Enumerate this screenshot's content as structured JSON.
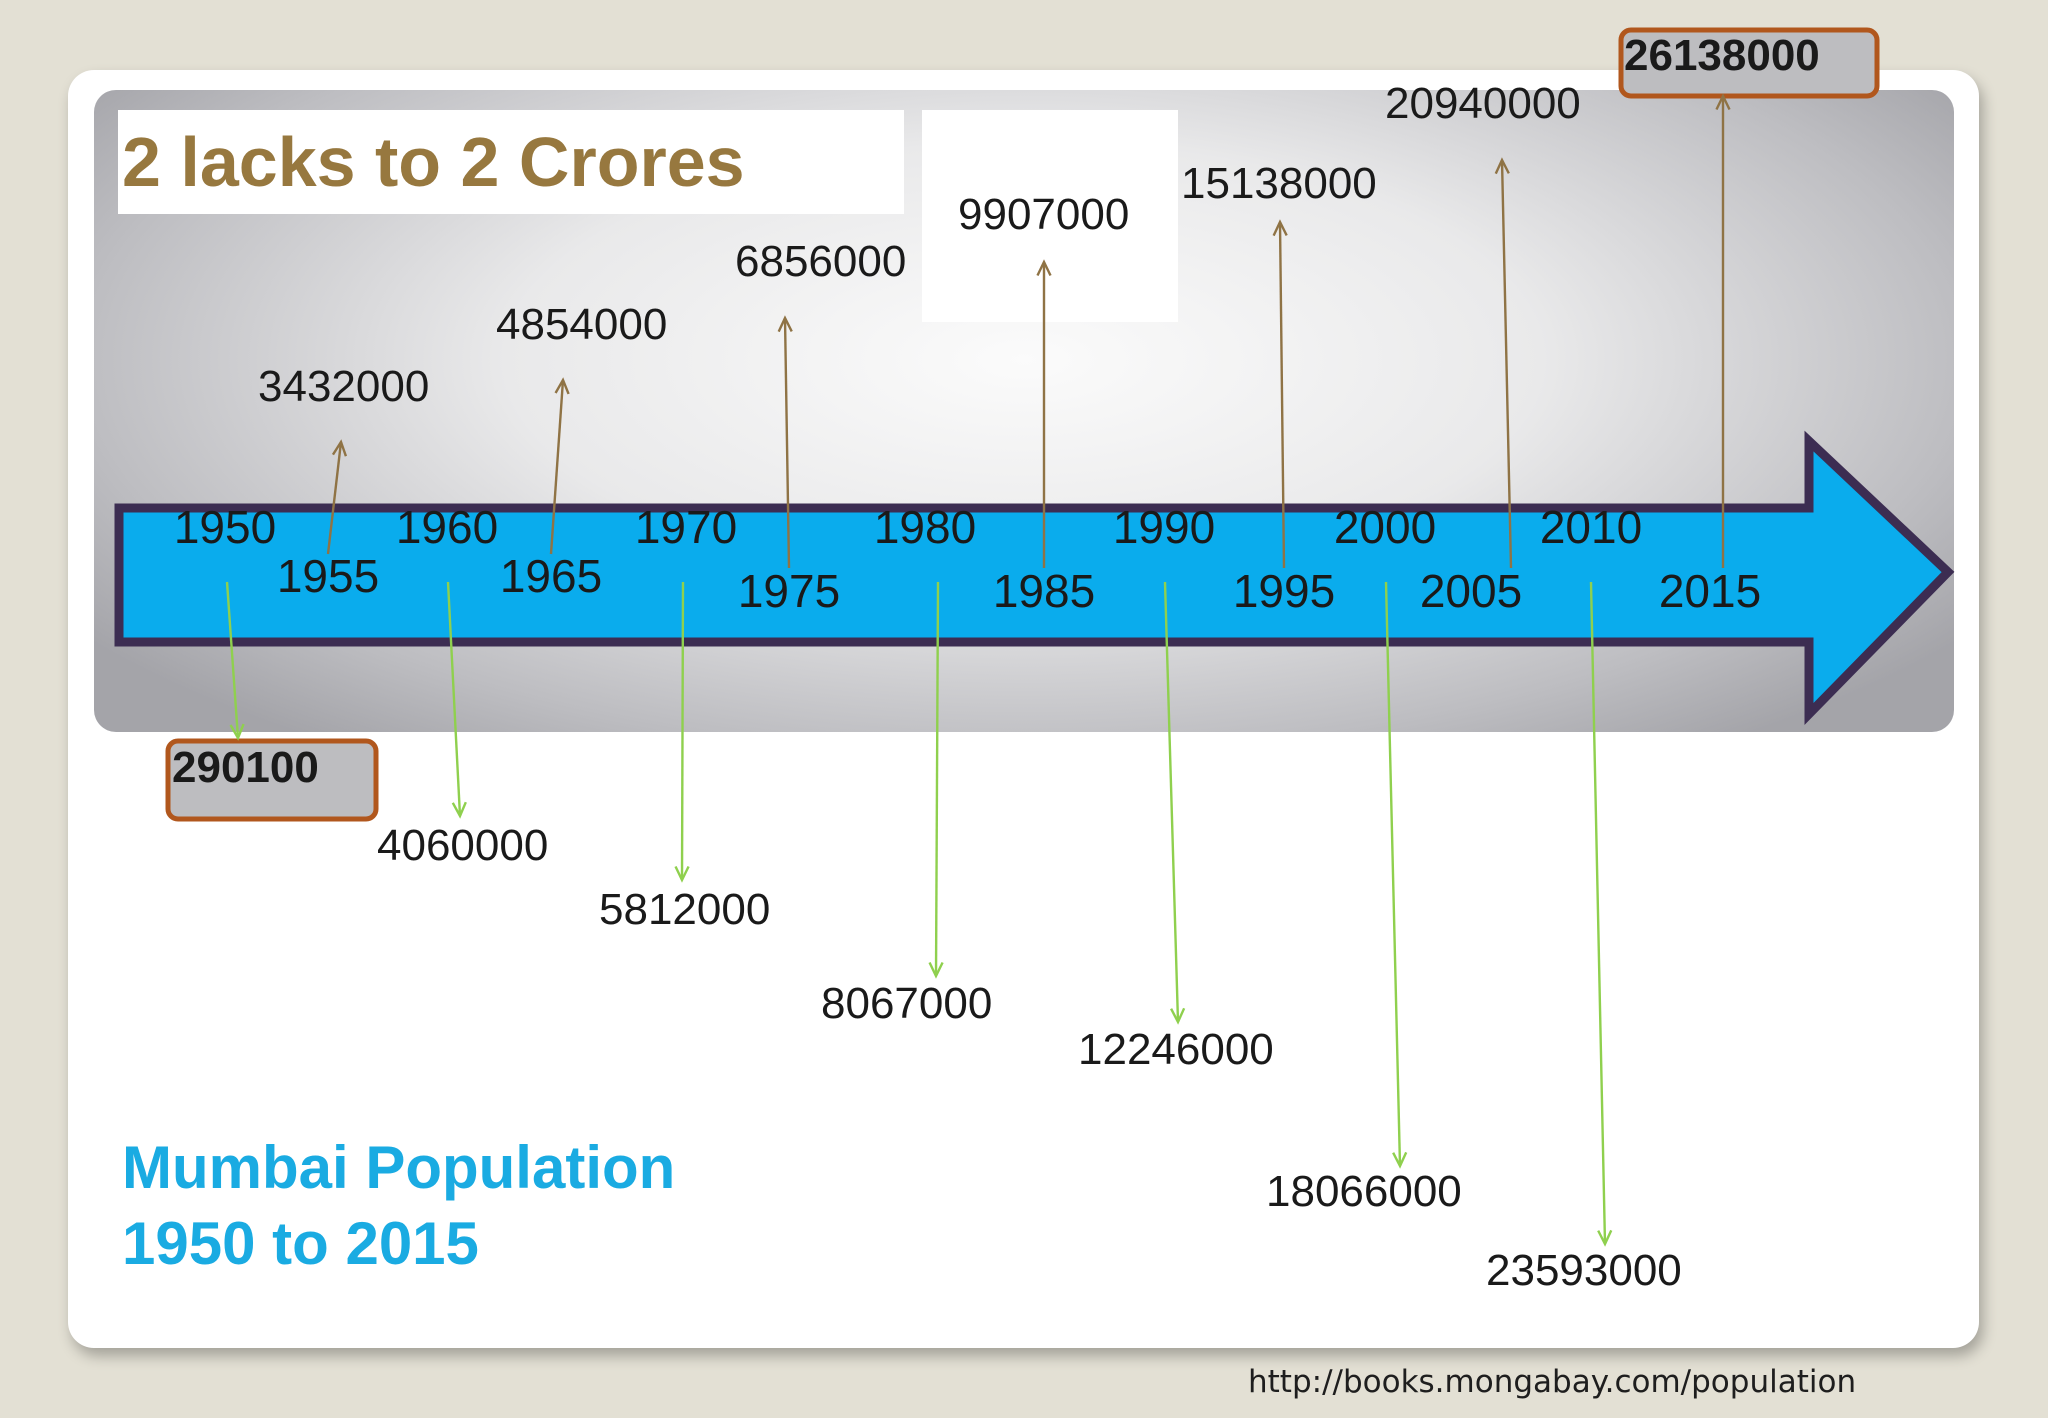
{
  "title": "2 lacks to 2 Crores",
  "subtitle_line1": "Mumbai Population",
  "subtitle_line2": "1950 to 2015",
  "source": "http://books.mongabay.com/population",
  "emoji_icon": "shocked-emoji-icon",
  "colors": {
    "arrow_fill": "#0aaced",
    "arrow_outline": "#3c2d52",
    "up_arrow": "#8f7345",
    "down_arrow": "#8fd04e",
    "highlight_border": "#b1571d",
    "highlight_fill": "#bdbdc0",
    "title": "#97783f",
    "subtitle": "#1aabe2"
  },
  "chart_data": {
    "type": "timeline",
    "x": [
      1950,
      1955,
      1960,
      1965,
      1970,
      1975,
      1980,
      1985,
      1990,
      1995,
      2000,
      2005,
      2010,
      2015
    ],
    "labels": [
      "1950",
      "1955",
      "1960",
      "1965",
      "1970",
      "1975",
      "1980",
      "1985",
      "1990",
      "1995",
      "2000",
      "2005",
      "2010",
      "2015"
    ],
    "values": [
      290100,
      3432000,
      4060000,
      4854000,
      5812000,
      6856000,
      8067000,
      9907000,
      12246000,
      15138000,
      18066000,
      20940000,
      23593000,
      26138000
    ],
    "value_labels": [
      "290100",
      "3432000",
      "4060000",
      "4854000",
      "5812000",
      "6856000",
      "8067000",
      "9907000",
      "12246000",
      "15138000",
      "18066000",
      "20940000",
      "23593000",
      "26138000"
    ],
    "highlighted": [
      "290100",
      "26138000"
    ]
  }
}
